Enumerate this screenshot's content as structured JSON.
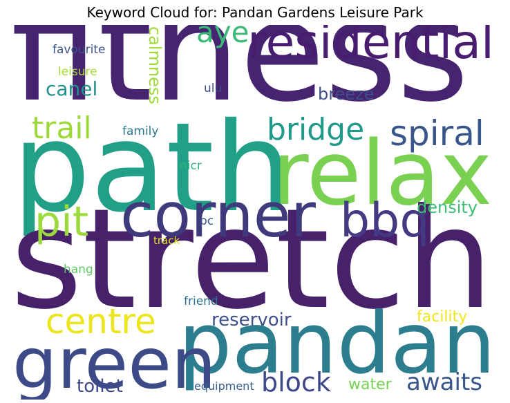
{
  "title": "Keyword Cloud for: Pandan Gardens Leisure Park",
  "words": {
    "fitness": {
      "text": "fitness",
      "color": "#46246f"
    },
    "path": {
      "text": "path",
      "color": "#21a087"
    },
    "stretch": {
      "text": "stretch",
      "color": "#47216a"
    },
    "relax": {
      "text": "relax",
      "color": "#7ad151"
    },
    "corner": {
      "text": "corner",
      "color": "#3f3a7b"
    },
    "pandan": {
      "text": "pandan",
      "color": "#2c7e8e"
    },
    "green": {
      "text": "green",
      "color": "#3c4b87"
    },
    "residential": {
      "text": "residential",
      "color": "#481d6f"
    },
    "bbq": {
      "text": "bbq",
      "color": "#443a83"
    },
    "pit": {
      "text": "pit",
      "color": "#9bd93c"
    },
    "spiral": {
      "text": "spiral",
      "color": "#39568c"
    },
    "bridge": {
      "text": "bridge",
      "color": "#1f9a8a"
    },
    "aye": {
      "text": "aye",
      "color": "#3aba76"
    },
    "trail": {
      "text": "trail",
      "color": "#9dd93b"
    },
    "centre": {
      "text": "centre",
      "color": "#ece51b"
    },
    "block": {
      "text": "block",
      "color": "#3e4989"
    },
    "awaits": {
      "text": "awaits",
      "color": "#39568c"
    },
    "canel": {
      "text": "canel",
      "color": "#21908d"
    },
    "reservoir": {
      "text": "reservoir",
      "color": "#3c508b"
    },
    "density": {
      "text": "density",
      "color": "#3dbc74"
    },
    "facility": {
      "text": "facility",
      "color": "#f1e51d"
    },
    "breeze": {
      "text": "breeze",
      "color": "#3d4d8a"
    },
    "calmness": {
      "text": "calmness",
      "color": "#a0da39"
    },
    "toilet": {
      "text": "toilet",
      "color": "#3f4889"
    },
    "water": {
      "text": "water",
      "color": "#75d054"
    },
    "favourite": {
      "text": "favourite",
      "color": "#3b528b"
    },
    "leisure": {
      "text": "leisure",
      "color": "#a5db36"
    },
    "ulu": {
      "text": "ulu",
      "color": "#3e4b8a"
    },
    "family": {
      "text": "family",
      "color": "#2a788e"
    },
    "nicr": {
      "text": "nicr",
      "color": "#2fb47c"
    },
    "pc": {
      "text": "pc",
      "color": "#3b528b"
    },
    "track": {
      "text": "track",
      "color": "#dde318"
    },
    "hang": {
      "text": "hang",
      "color": "#5cc863"
    },
    "friend": {
      "text": "friend",
      "color": "#2d708e"
    },
    "equipment": {
      "text": "equipment",
      "color": "#35608d"
    }
  }
}
